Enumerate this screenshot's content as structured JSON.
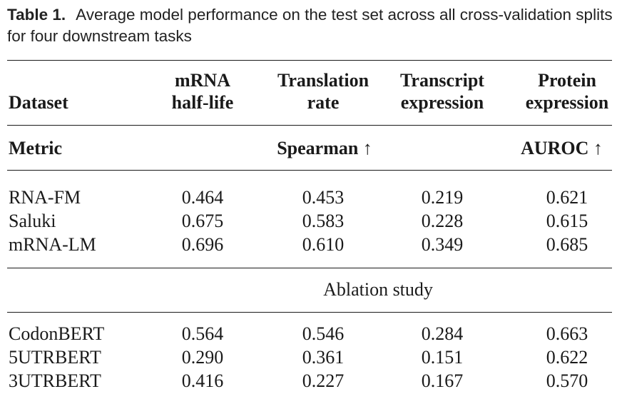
{
  "caption": {
    "label": "Table 1.",
    "text": "Average model performance on the test set across all cross-validation splits for four downstream tasks"
  },
  "header": {
    "dataset": "Dataset",
    "col1_line1": "mRNA",
    "col1_line2": "half-life",
    "col2_line1": "Translation",
    "col2_line2": "rate",
    "col3_line1": "Transcript",
    "col3_line2": "expression",
    "col4_line1": "Protein",
    "col4_line2": "expression"
  },
  "metric": {
    "label": "Metric",
    "spearman": "Spearman ↑",
    "auroc": "AUROC ↑"
  },
  "main_rows": [
    {
      "name": "RNA-FM",
      "values": [
        "0.464",
        "0.453",
        "0.219",
        "0.621"
      ]
    },
    {
      "name": "Saluki",
      "values": [
        "0.675",
        "0.583",
        "0.228",
        "0.615"
      ]
    },
    {
      "name": "mRNA-LM",
      "values": [
        "0.696",
        "0.610",
        "0.349",
        "0.685"
      ]
    }
  ],
  "ablation_label": "Ablation study",
  "ablation_rows": [
    {
      "name": "CodonBERT",
      "values": [
        "0.564",
        "0.546",
        "0.284",
        "0.663"
      ]
    },
    {
      "name": "5UTRBERT",
      "values": [
        "0.290",
        "0.361",
        "0.151",
        "0.622"
      ]
    },
    {
      "name": "3UTRBERT",
      "values": [
        "0.416",
        "0.227",
        "0.167",
        "0.570"
      ]
    }
  ]
}
